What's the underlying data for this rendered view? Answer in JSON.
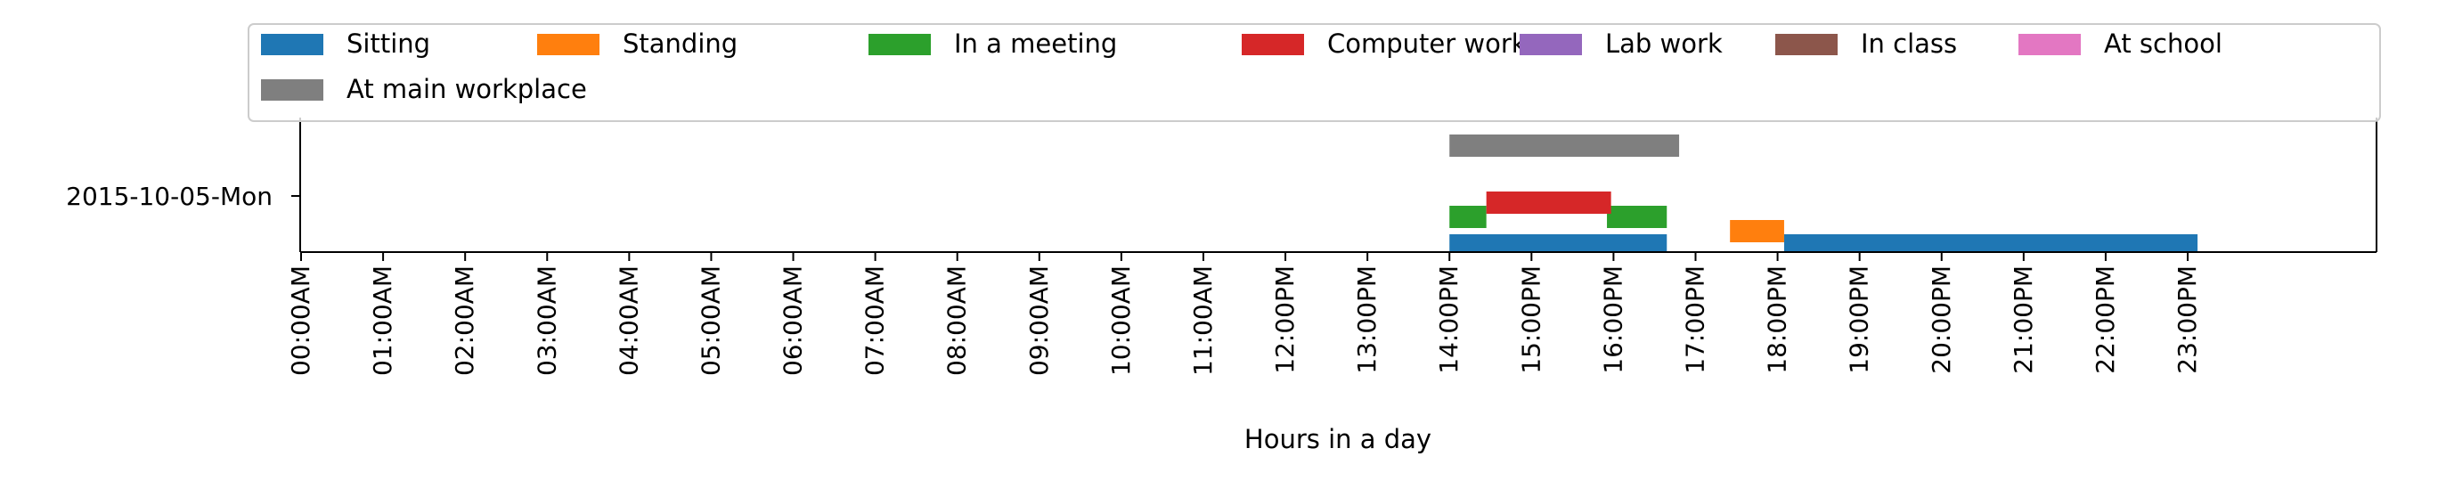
{
  "chart_data": {
    "type": "timeline",
    "title": "",
    "xlabel": "Hours in a day",
    "ylabel": "",
    "xlim": [
      0,
      24
    ],
    "grid": false,
    "legend_position": "top",
    "day_label": "2015-10-05-Mon",
    "tick_labels": [
      "00:00AM",
      "01:00AM",
      "02:00AM",
      "03:00AM",
      "04:00AM",
      "05:00AM",
      "06:00AM",
      "07:00AM",
      "08:00AM",
      "09:00AM",
      "10:00AM",
      "11:00AM",
      "12:00PM",
      "13:00PM",
      "14:00PM",
      "15:00PM",
      "16:00PM",
      "17:00PM",
      "18:00PM",
      "19:00PM",
      "20:00PM",
      "21:00PM",
      "22:00PM",
      "23:00PM"
    ],
    "series": [
      {
        "name": "Sitting",
        "color": "#1f77b4",
        "intervals": [
          [
            14.0,
            16.65
          ],
          [
            18.08,
            23.12
          ]
        ]
      },
      {
        "name": "Standing",
        "color": "#ff7f0e",
        "intervals": [
          [
            17.42,
            18.08
          ]
        ]
      },
      {
        "name": "In a meeting",
        "color": "#2ca02c",
        "intervals": [
          [
            14.0,
            14.45
          ],
          [
            15.92,
            16.65
          ]
        ]
      },
      {
        "name": "Computer work",
        "color": "#d62728",
        "intervals": [
          [
            14.45,
            15.97
          ]
        ]
      },
      {
        "name": "Lab work",
        "color": "#9467bd",
        "intervals": []
      },
      {
        "name": "In class",
        "color": "#8c564b",
        "intervals": []
      },
      {
        "name": "At school",
        "color": "#e377c2",
        "intervals": []
      },
      {
        "name": "At main workplace",
        "color": "#7f7f7f",
        "intervals": [
          [
            14.0,
            16.8
          ]
        ]
      }
    ]
  }
}
